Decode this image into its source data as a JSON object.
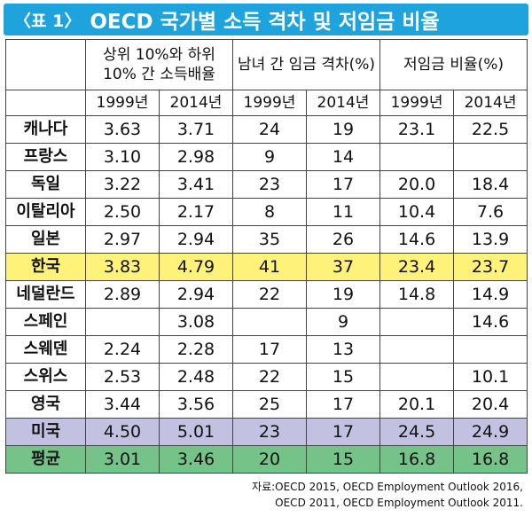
{
  "banner": {
    "tag": "〈표 1〉",
    "title": "OECD 국가별 소득 격차 및 저임금 비율",
    "color": "#1ea3dc"
  },
  "table": {
    "groups": [
      "상위 10%와 하위 10% 간 소득배율",
      "남녀 간 임금 격차(%)",
      "저임금 비율(%)"
    ],
    "years": [
      "1999년",
      "2014년",
      "1999년",
      "2014년",
      "1999년",
      "2014년"
    ],
    "rows": [
      {
        "country": "캐나다",
        "values": [
          "3.63",
          "3.71",
          "24",
          "19",
          "23.1",
          "22.5"
        ],
        "highlight": ""
      },
      {
        "country": "프랑스",
        "values": [
          "3.10",
          "2.98",
          "9",
          "14",
          "",
          ""
        ],
        "highlight": ""
      },
      {
        "country": "독일",
        "values": [
          "3.22",
          "3.41",
          "23",
          "17",
          "20.0",
          "18.4"
        ],
        "highlight": ""
      },
      {
        "country": "이탈리아",
        "values": [
          "2.50",
          "2.17",
          "8",
          "11",
          "10.4",
          "7.6"
        ],
        "highlight": ""
      },
      {
        "country": "일본",
        "values": [
          "2.97",
          "2.94",
          "35",
          "26",
          "14.6",
          "13.9"
        ],
        "highlight": ""
      },
      {
        "country": "한국",
        "values": [
          "3.83",
          "4.79",
          "41",
          "37",
          "23.4",
          "23.7"
        ],
        "highlight": "#fff27a"
      },
      {
        "country": "네덜란드",
        "values": [
          "2.89",
          "2.94",
          "22",
          "19",
          "14.8",
          "14.9"
        ],
        "highlight": ""
      },
      {
        "country": "스페인",
        "values": [
          "",
          "3.08",
          "",
          "9",
          "",
          "14.6"
        ],
        "highlight": ""
      },
      {
        "country": "스웨덴",
        "values": [
          "2.24",
          "2.28",
          "17",
          "13",
          "",
          ""
        ],
        "highlight": ""
      },
      {
        "country": "스위스",
        "values": [
          "2.53",
          "2.48",
          "22",
          "15",
          "",
          "10.1"
        ],
        "highlight": ""
      },
      {
        "country": "영국",
        "values": [
          "3.44",
          "3.56",
          "25",
          "17",
          "20.1",
          "20.4"
        ],
        "highlight": ""
      },
      {
        "country": "미국",
        "values": [
          "4.50",
          "5.01",
          "23",
          "17",
          "24.5",
          "24.9"
        ],
        "highlight": "#c3c1e2"
      },
      {
        "country": "평균",
        "values": [
          "3.01",
          "3.46",
          "20",
          "15",
          "16.8",
          "16.8"
        ],
        "highlight": "#76c38a"
      }
    ]
  },
  "footnote": [
    "자료:OECD 2015, OECD Employment Outlook 2016,",
    "OECD 2011, OECD Employment Outlook 2011."
  ]
}
